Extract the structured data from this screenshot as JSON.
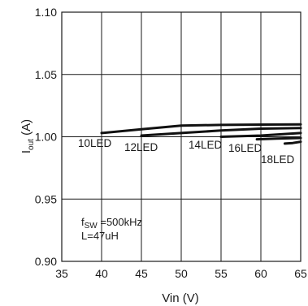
{
  "chart_data": {
    "type": "line",
    "xlabel": "Vin (V)",
    "ylabel_main": "I",
    "ylabel_sub": "out",
    "ylabel_unit": " (A)",
    "xlim": [
      35,
      65
    ],
    "ylim": [
      0.9,
      1.1
    ],
    "x_ticks": [
      35,
      40,
      45,
      50,
      55,
      60,
      65
    ],
    "y_ticks": [
      0.9,
      0.95,
      1.0,
      1.05,
      1.1
    ],
    "x_tick_labels": [
      "35",
      "40",
      "45",
      "50",
      "55",
      "60",
      "65"
    ],
    "y_tick_labels": [
      "0.90",
      "0.95",
      "1.00",
      "1.05",
      "1.10"
    ],
    "grid": true,
    "series": [
      {
        "name": "10LED",
        "x": [
          40,
          45,
          50,
          55,
          60,
          65
        ],
        "y": [
          1.003,
          1.006,
          1.009,
          1.0095,
          1.0098,
          1.01
        ]
      },
      {
        "name": "12LED",
        "x": [
          45,
          50,
          55,
          60,
          65
        ],
        "y": [
          1.001,
          1.003,
          1.005,
          1.0065,
          1.007
        ]
      },
      {
        "name": "14LED",
        "x": [
          55,
          60,
          65
        ],
        "y": [
          1.0,
          1.001,
          1.003
        ]
      },
      {
        "name": "16LED",
        "x": [
          59.5,
          62,
          65
        ],
        "y": [
          0.998,
          0.9985,
          0.999
        ]
      },
      {
        "name": "18LED",
        "x": [
          63,
          64,
          65
        ],
        "y": [
          0.9945,
          0.995,
          0.996
        ]
      }
    ],
    "annotation": {
      "f_main": "f",
      "f_sub": "SW",
      "f_value": " =500kHz",
      "inductor": "L=47uH"
    }
  }
}
